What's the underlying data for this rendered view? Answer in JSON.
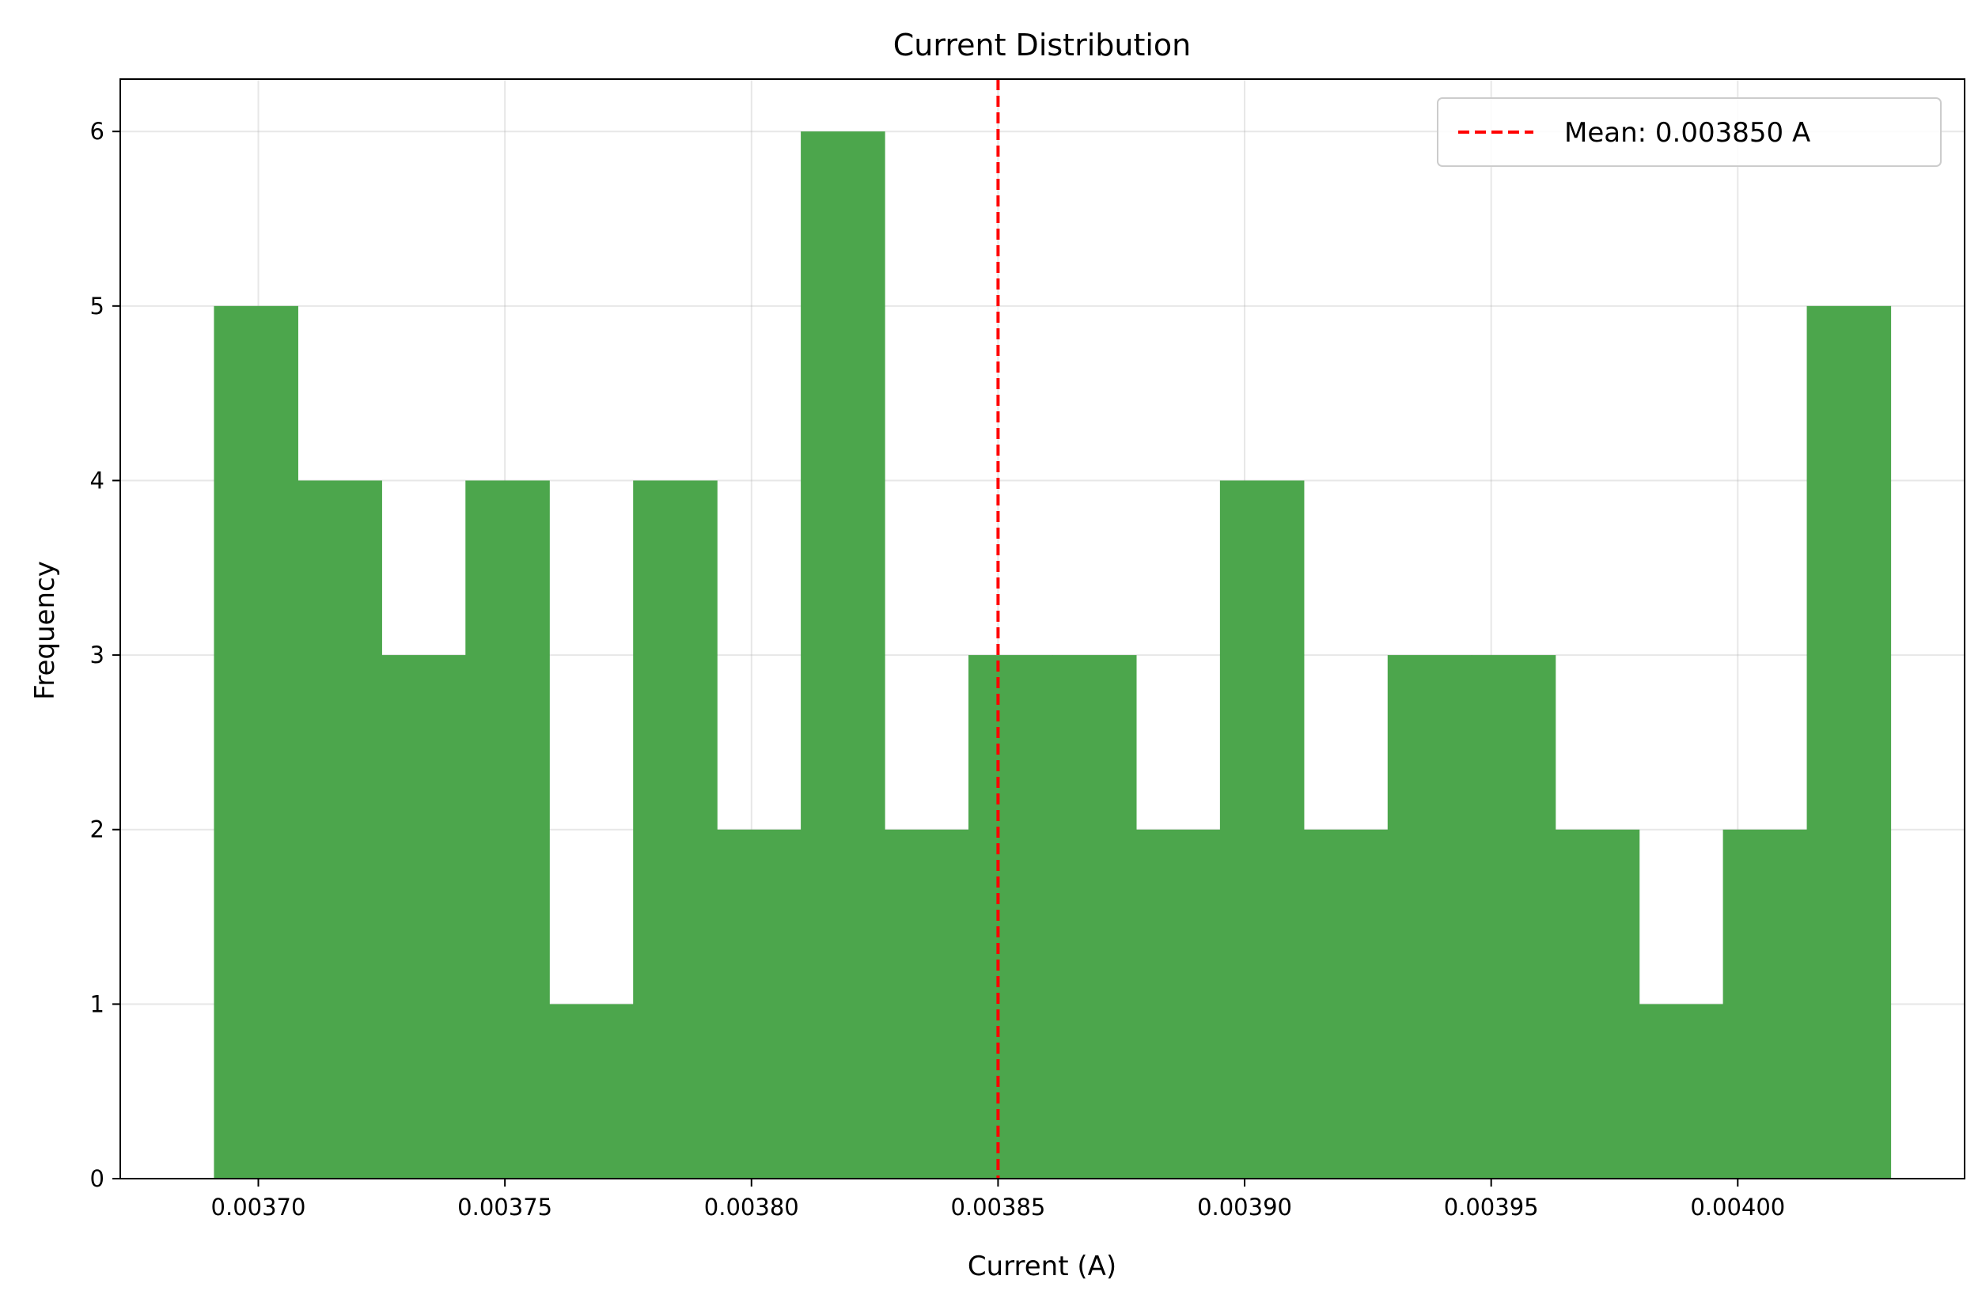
{
  "chart_data": {
    "type": "bar",
    "title": "Current Distribution",
    "xlabel": "Current (A)",
    "ylabel": "Frequency",
    "xlim": [
      0.003672,
      0.004046
    ],
    "ylim": [
      0,
      6.3
    ],
    "xticks": [
      0.0037,
      0.00375,
      0.0038,
      0.00385,
      0.0039,
      0.00395,
      0.004
    ],
    "xtick_labels": [
      "0.00370",
      "0.00375",
      "0.00380",
      "0.00385",
      "0.00390",
      "0.00395",
      "0.00400"
    ],
    "yticks": [
      0,
      1,
      2,
      3,
      4,
      5,
      6
    ],
    "ytick_labels": [
      "0",
      "1",
      "2",
      "3",
      "4",
      "5",
      "6"
    ],
    "grid": true,
    "bar_color": "#4ca64c",
    "bin_edges": [
      0.003691,
      0.003708,
      0.003725,
      0.003742,
      0.003759,
      0.003776,
      0.003793,
      0.00381,
      0.003827,
      0.003844,
      0.003861,
      0.003878,
      0.003895,
      0.003912,
      0.003929,
      0.003946,
      0.003963,
      0.00398,
      0.003997,
      0.004014,
      0.004031
    ],
    "counts": [
      5,
      4,
      3,
      4,
      1,
      4,
      2,
      6,
      2,
      3,
      3,
      2,
      4,
      2,
      3,
      3,
      2,
      1,
      2,
      5
    ],
    "mean_line": {
      "value": 0.00385,
      "color": "#ff0000",
      "style": "dashed",
      "label": "Mean: 0.003850 A"
    },
    "legend_position": "top-right"
  }
}
